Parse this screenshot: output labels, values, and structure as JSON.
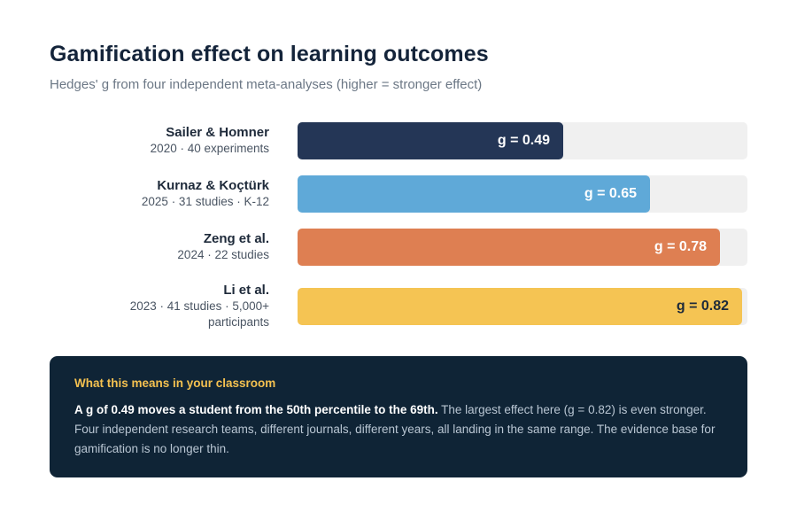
{
  "chart_data": {
    "type": "bar",
    "orientation": "horizontal",
    "title": "Gamification effect on learning outcomes",
    "subtitle": "Hedges' g from four independent meta-analyses (higher = stronger effect)",
    "xlim": [
      0,
      0.83
    ],
    "value_prefix": "g = ",
    "bars": [
      {
        "name": "Sailer & Homner",
        "meta": "2020 · 40 experiments",
        "value": 0.49,
        "color": "#243656",
        "label_color": "#ffffff"
      },
      {
        "name": "Kurnaz & Koçtürk",
        "meta": "2025 · 31 studies · K-12",
        "value": 0.65,
        "color": "#5fa9d8",
        "label_color": "#ffffff"
      },
      {
        "name": "Zeng et al.",
        "meta": "2024 · 22 studies",
        "value": 0.78,
        "color": "#de7f52",
        "label_color": "#ffffff"
      },
      {
        "name": "Li et al.",
        "meta": "2023 · 41 studies · 5,000+ participants",
        "value": 0.82,
        "color": "#f5c453",
        "label_color": "#1e2a3a"
      }
    ]
  },
  "callout": {
    "heading": "What this means in your classroom",
    "lead": "A g of 0.49 moves a student from the 50th percentile to the 69th.",
    "body": " The largest effect here (g = 0.82) is even stronger. Four independent research teams, different journals, different years, all landing in the same range. The evidence base for gamification is no longer thin."
  }
}
